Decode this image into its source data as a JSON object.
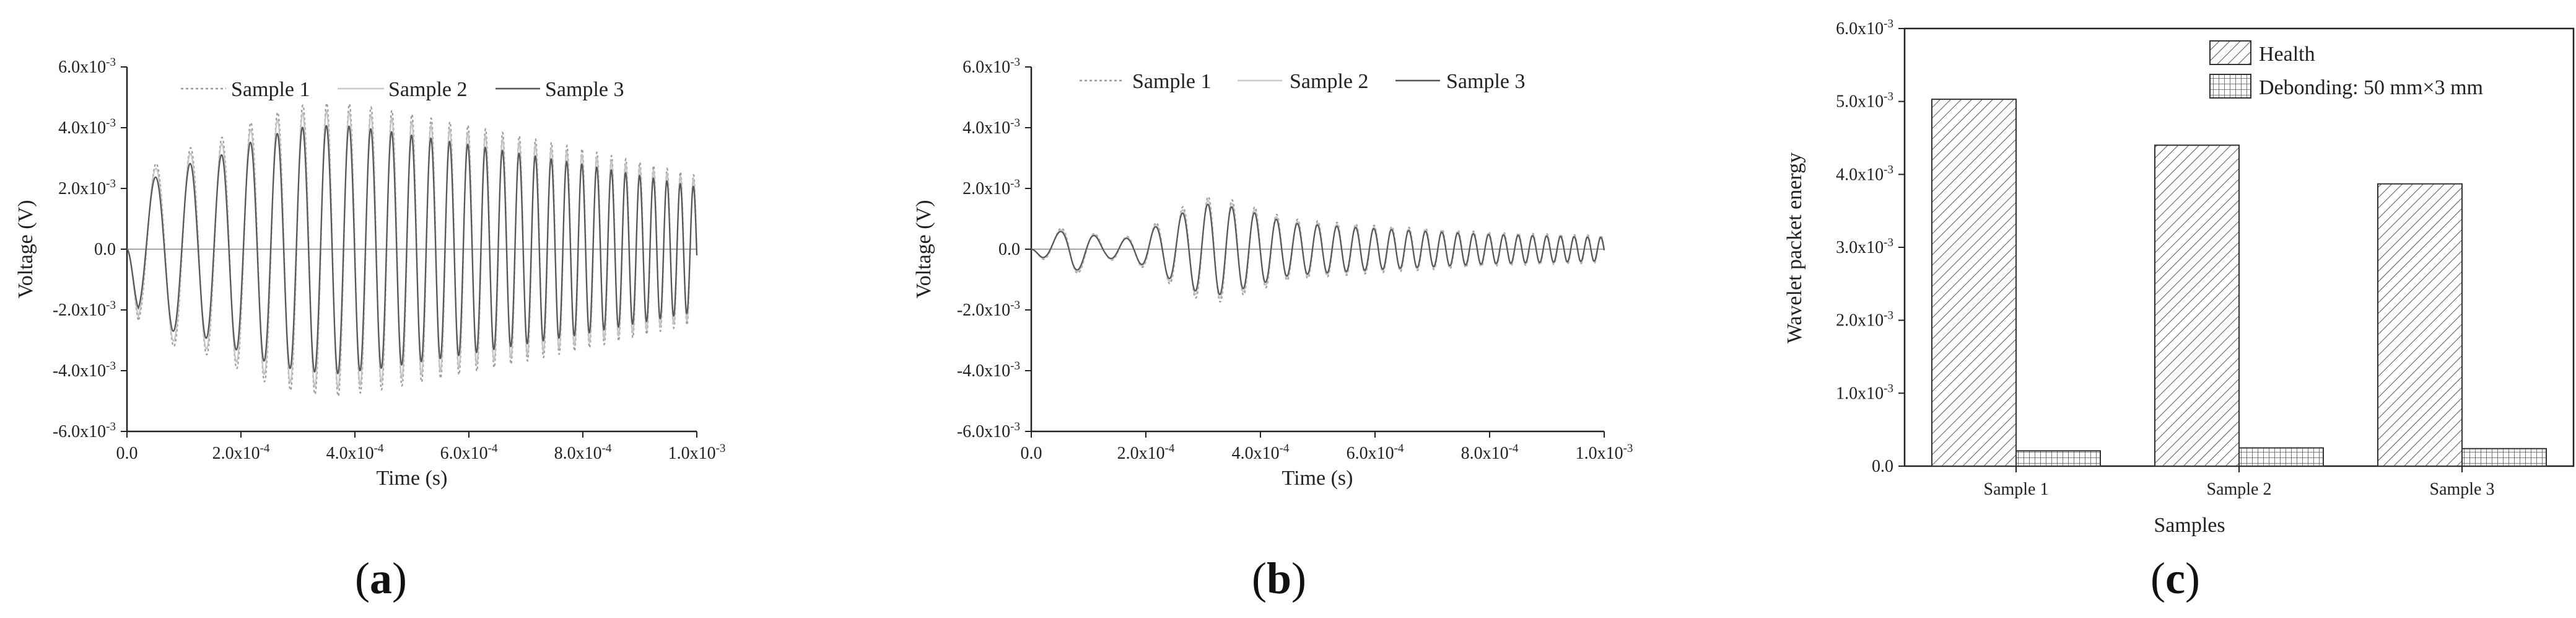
{
  "figure": {
    "panels": [
      {
        "id": "a",
        "label": "(a)"
      },
      {
        "id": "b",
        "label": "(b)"
      },
      {
        "id": "c",
        "label": "(c)"
      }
    ]
  },
  "chart_data": [
    {
      "type": "line",
      "panel": "(a)",
      "title": "",
      "xlabel": "Time (s)",
      "ylabel": "Voltage (V)",
      "xlim": [
        0,
        0.001
      ],
      "ylim": [
        -0.006,
        0.006
      ],
      "xticks": [
        0,
        0.0002,
        0.0004,
        0.0006,
        0.0008,
        0.001
      ],
      "xtick_labels": [
        "0.0",
        "2.0x10-4",
        "4.0x10-4",
        "6.0x10-4",
        "8.0x10-4",
        "1.0x10-3"
      ],
      "yticks": [
        0.006,
        0.004,
        0.002,
        0,
        -0.002,
        -0.004,
        -0.006
      ],
      "ytick_labels": [
        "6.0x10-3",
        "4.0x10-3",
        "2.0x10-3",
        "0.0",
        "-2.0x10-3",
        "-4.0x10-3",
        "-6.0x10-3"
      ],
      "legend": [
        "Sample 1",
        "Sample 2",
        "Sample 3"
      ],
      "legend_position": "top",
      "signal": {
        "description": "decaying chirp response",
        "f_start_hz": 14000,
        "f_end_hz": 44000,
        "envelope_points": [
          [
            0,
            0.0
          ],
          [
            2e-05,
            0.0022
          ],
          [
            8e-05,
            0.0029
          ],
          [
            0.00015,
            0.0032
          ],
          [
            0.00023,
            0.0039
          ],
          [
            0.0003,
            0.0043
          ],
          [
            0.00037,
            0.0044
          ],
          [
            0.00045,
            0.0042
          ],
          [
            0.0006,
            0.0037
          ],
          [
            0.0008,
            0.003
          ],
          [
            0.001,
            0.0022
          ]
        ],
        "series_amplitude_scale": [
          1.1,
          1.04,
          0.93
        ]
      }
    },
    {
      "type": "line",
      "panel": "(b)",
      "title": "",
      "xlabel": "Time (s)",
      "ylabel": "Voltage (V)",
      "xlim": [
        0,
        0.001
      ],
      "ylim": [
        -0.006,
        0.006
      ],
      "xticks": [
        0,
        0.0002,
        0.0004,
        0.0006,
        0.0008,
        0.001
      ],
      "xtick_labels": [
        "0.0",
        "2.0x10-4",
        "4.0x10-4",
        "6.0x10-4",
        "8.0x10-4",
        "1.0x10-3"
      ],
      "yticks": [
        0.006,
        0.004,
        0.002,
        0,
        -0.002,
        -0.004,
        -0.006
      ],
      "ytick_labels": [
        "6.0x10-3",
        "4.0x10-3",
        "2.0x10-3",
        "0.0",
        "-2.0x10-3",
        "-4.0x10-3",
        "-6.0x10-3"
      ],
      "legend": [
        "Sample 1",
        "Sample 2",
        "Sample 3"
      ],
      "legend_position": "top",
      "signal": {
        "description": "attenuated chirp response (debonding)",
        "f_start_hz": 14000,
        "f_end_hz": 44000,
        "envelope_points": [
          [
            0,
            0.0
          ],
          [
            2e-05,
            0.0003
          ],
          [
            7e-05,
            0.0008
          ],
          [
            0.00013,
            0.0003
          ],
          [
            0.00018,
            0.0004
          ],
          [
            0.00023,
            0.0009
          ],
          [
            0.00028,
            0.0014
          ],
          [
            0.00032,
            0.0016
          ],
          [
            0.00038,
            0.0013
          ],
          [
            0.00045,
            0.0009
          ],
          [
            0.0006,
            0.0007
          ],
          [
            0.0008,
            0.0005
          ],
          [
            0.001,
            0.0004
          ]
        ],
        "series_amplitude_scale": [
          1.12,
          1.04,
          0.96
        ]
      }
    },
    {
      "type": "bar",
      "panel": "(c)",
      "title": "",
      "xlabel": "Samples",
      "ylabel": "Wavelet packet energy",
      "categories": [
        "Sample 1",
        "Sample 2",
        "Sample 3"
      ],
      "series": [
        {
          "name": "Health",
          "values": [
            0.00503,
            0.0044,
            0.00387
          ]
        },
        {
          "name": "Debonding: 50 mm×3 mm",
          "values": [
            0.00021,
            0.00025,
            0.00024
          ]
        }
      ],
      "ylim": [
        0,
        0.006
      ],
      "yticks": [
        0,
        0.001,
        0.002,
        0.003,
        0.004,
        0.005,
        0.006
      ],
      "ytick_labels": [
        "0.0",
        "1.0x10-3",
        "2.0x10-3",
        "3.0x10-3",
        "4.0x10-3",
        "5.0x10-3",
        "6.0x10-3"
      ],
      "legend_position": "top-right"
    }
  ]
}
